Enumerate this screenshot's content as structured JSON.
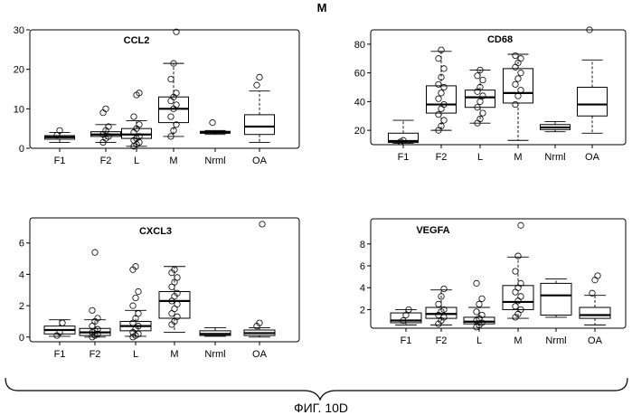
{
  "figure": {
    "panel_letter": "M",
    "caption": "ФИГ. 10D"
  },
  "chart_data": [
    {
      "type": "boxplot",
      "title": "CCL2",
      "categories": [
        "F1",
        "F2",
        "L",
        "M",
        "Nrml",
        "OA"
      ],
      "ylim": [
        0,
        30
      ],
      "yticks": [
        "0",
        "10",
        "20",
        "30"
      ],
      "series": [
        {
          "name": "F1",
          "whisker_low": 1.5,
          "q1": 2.3,
          "median": 2.8,
          "q3": 3.2,
          "whisker_high": 4.0,
          "outliers": [
            3.3,
            4.5
          ]
        },
        {
          "name": "F2",
          "whisker_low": 1.5,
          "q1": 3.0,
          "median": 3.5,
          "q3": 4.2,
          "whisker_high": 6.0,
          "outliers": [
            1.5,
            2.5,
            3.0,
            3.5,
            4.5,
            5.5,
            9.0,
            10.0
          ]
        },
        {
          "name": "L",
          "whisker_low": 0.5,
          "q1": 2.5,
          "median": 3.5,
          "q3": 5.0,
          "whisker_high": 7.0,
          "outliers": [
            0.5,
            1.0,
            1.5,
            2.0,
            2.5,
            3.0,
            4.0,
            5.0,
            6.0,
            8.0,
            13.5,
            14.0
          ]
        },
        {
          "name": "M",
          "whisker_low": 3.0,
          "q1": 6.5,
          "median": 10.0,
          "q3": 13.0,
          "whisker_high": 21.5,
          "outliers": [
            3.0,
            4.5,
            6.0,
            8.0,
            10.0,
            11.0,
            12.0,
            13.0,
            14.0,
            17.5,
            21.5,
            29.5
          ]
        },
        {
          "name": "Nrml",
          "whisker_low": 3.5,
          "q1": 3.8,
          "median": 4.0,
          "q3": 4.3,
          "whisker_high": 4.5,
          "outliers": [
            6.5
          ]
        },
        {
          "name": "OA",
          "whisker_low": 1.5,
          "q1": 3.5,
          "median": 5.5,
          "q3": 8.5,
          "whisker_high": 14.5,
          "outliers": [
            16.0,
            18.0
          ]
        }
      ]
    },
    {
      "type": "boxplot",
      "title": "CD68",
      "categories": [
        "F1",
        "F2",
        "L",
        "M",
        "Nrml",
        "OA"
      ],
      "ylim": [
        10,
        90
      ],
      "yticks": [
        "20",
        "40",
        "60",
        "80"
      ],
      "series": [
        {
          "name": "F1",
          "whisker_low": 11,
          "q1": 11.5,
          "median": 12.5,
          "q3": 18,
          "whisker_high": 27,
          "outliers": [
            12,
            13
          ]
        },
        {
          "name": "F2",
          "whisker_low": 20,
          "q1": 32,
          "median": 38,
          "q3": 51,
          "whisker_high": 75,
          "outliers": [
            20,
            23,
            27,
            31,
            35,
            38,
            42,
            46,
            50,
            52,
            57,
            63,
            70,
            76
          ]
        },
        {
          "name": "L",
          "whisker_low": 25,
          "q1": 36,
          "median": 43,
          "q3": 48,
          "whisker_high": 62,
          "outliers": [
            25,
            28,
            32,
            36,
            40,
            44,
            47,
            50,
            55,
            58,
            62
          ]
        },
        {
          "name": "M",
          "whisker_low": 13,
          "q1": 39,
          "median": 46,
          "q3": 63,
          "whisker_high": 73,
          "outliers": [
            38,
            44,
            48,
            52,
            56,
            60,
            64,
            67,
            70,
            72
          ]
        },
        {
          "name": "Nrml",
          "whisker_low": 19,
          "q1": 20.5,
          "median": 22,
          "q3": 24,
          "whisker_high": 26,
          "outliers": []
        },
        {
          "name": "OA",
          "whisker_low": 18,
          "q1": 30,
          "median": 38,
          "q3": 50,
          "whisker_high": 69,
          "outliers": [
            90
          ]
        }
      ]
    },
    {
      "type": "boxplot",
      "title": "CXCL3",
      "categories": [
        "F1",
        "F2",
        "L",
        "M",
        "Nrml",
        "OA"
      ],
      "ylim": [
        -0.3,
        7.6
      ],
      "yticks": [
        "0",
        "2",
        "4",
        "6"
      ],
      "series": [
        {
          "name": "F1",
          "whisker_low": 0.05,
          "q1": 0.2,
          "median": 0.45,
          "q3": 0.7,
          "whisker_high": 1.1,
          "outliers": [
            0.1,
            0.3,
            0.9
          ]
        },
        {
          "name": "F2",
          "whisker_low": 0.0,
          "q1": 0.1,
          "median": 0.3,
          "q3": 0.55,
          "whisker_high": 1.1,
          "outliers": [
            0.0,
            0.1,
            0.2,
            0.3,
            0.4,
            0.5,
            0.7,
            1.0,
            1.2,
            1.7,
            5.4
          ]
        },
        {
          "name": "L",
          "whisker_low": 0.05,
          "q1": 0.4,
          "median": 0.7,
          "q3": 1.0,
          "whisker_high": 1.7,
          "outliers": [
            0.0,
            0.1,
            0.2,
            0.3,
            0.5,
            0.7,
            0.9,
            1.2,
            1.5,
            2.0,
            2.5,
            2.9,
            4.3,
            4.5
          ]
        },
        {
          "name": "M",
          "whisker_low": 0.3,
          "q1": 1.2,
          "median": 2.3,
          "q3": 2.9,
          "whisker_high": 4.5,
          "outliers": [
            0.8,
            1.0,
            1.3,
            1.5,
            1.8,
            2.1,
            2.3,
            2.6,
            2.8,
            3.2,
            3.5,
            3.8,
            4.1,
            4.3
          ]
        },
        {
          "name": "Nrml",
          "whisker_low": 0.05,
          "q1": 0.1,
          "median": 0.2,
          "q3": 0.4,
          "whisker_high": 0.6,
          "outliers": []
        },
        {
          "name": "OA",
          "whisker_low": 0.0,
          "q1": 0.1,
          "median": 0.25,
          "q3": 0.45,
          "whisker_high": 0.6,
          "outliers": [
            0.7,
            0.9,
            7.2
          ]
        }
      ]
    },
    {
      "type": "boxplot",
      "title": "VEGFA",
      "categories": [
        "F1",
        "F2",
        "L",
        "M",
        "Nrml",
        "OA"
      ],
      "ylim": [
        0.3,
        10.3
      ],
      "yticks": [
        "2",
        "4",
        "6",
        "8"
      ],
      "series": [
        {
          "name": "F1",
          "whisker_low": 0.6,
          "q1": 0.8,
          "median": 1.0,
          "q3": 1.7,
          "whisker_high": 2.0,
          "outliers": [
            1.0,
            1.5,
            2.0
          ]
        },
        {
          "name": "F2",
          "whisker_low": 0.6,
          "q1": 1.2,
          "median": 1.6,
          "q3": 2.2,
          "whisker_high": 3.8,
          "outliers": [
            0.7,
            1.0,
            1.3,
            1.5,
            1.8,
            2.0,
            2.5,
            3.2,
            3.9
          ]
        },
        {
          "name": "L",
          "whisker_low": 0.3,
          "q1": 0.7,
          "median": 0.9,
          "q3": 1.3,
          "whisker_high": 2.2,
          "outliers": [
            0.4,
            0.6,
            0.8,
            1.0,
            1.2,
            1.5,
            1.8,
            2.5,
            3.0,
            4.4
          ]
        },
        {
          "name": "M",
          "whisker_low": 1.2,
          "q1": 2.0,
          "median": 2.7,
          "q3": 4.2,
          "whisker_high": 6.8,
          "outliers": [
            1.3,
            1.6,
            2.0,
            2.3,
            2.8,
            3.2,
            3.6,
            4.0,
            4.4,
            5.5,
            6.9,
            9.7
          ]
        },
        {
          "name": "Nrml",
          "whisker_low": 1.3,
          "q1": 1.5,
          "median": 3.3,
          "q3": 4.4,
          "whisker_high": 4.8,
          "outliers": []
        },
        {
          "name": "OA",
          "whisker_low": 0.6,
          "q1": 1.2,
          "median": 1.5,
          "q3": 2.2,
          "whisker_high": 3.3,
          "outliers": [
            3.5,
            4.7,
            5.1
          ]
        }
      ]
    }
  ]
}
